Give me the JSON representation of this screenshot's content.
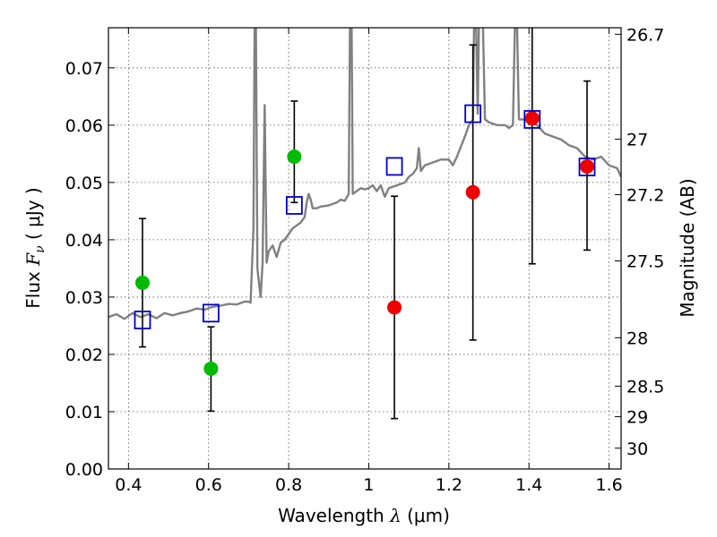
{
  "chart_data": {
    "type": "scatter",
    "xlabel": {
      "pre": "Wavelength  ",
      "sym": "λ",
      "post": " (μm)"
    },
    "ylabel": {
      "pre": "Flux  ",
      "sym": "F",
      "sub": "ν",
      "post": "  ( μJy )"
    },
    "y2label": "Magnitude (AB)",
    "xlim": [
      0.35,
      1.63
    ],
    "ylim": [
      0.0,
      0.077
    ],
    "grid": true,
    "xticks": [
      {
        "v": 0.4,
        "label": "0.4"
      },
      {
        "v": 0.6,
        "label": "0.6"
      },
      {
        "v": 0.8,
        "label": "0.8"
      },
      {
        "v": 1.0,
        "label": "1"
      },
      {
        "v": 1.2,
        "label": "1.2"
      },
      {
        "v": 1.4,
        "label": "1.4"
      },
      {
        "v": 1.6,
        "label": "1.6"
      }
    ],
    "yticks": [
      {
        "v": 0.0,
        "label": "0.00"
      },
      {
        "v": 0.01,
        "label": "0.01"
      },
      {
        "v": 0.02,
        "label": "0.02"
      },
      {
        "v": 0.03,
        "label": "0.03"
      },
      {
        "v": 0.04,
        "label": "0.04"
      },
      {
        "v": 0.05,
        "label": "0.05"
      },
      {
        "v": 0.06,
        "label": "0.06"
      },
      {
        "v": 0.07,
        "label": "0.07"
      }
    ],
    "y2ticks": [
      {
        "mag": 26.7,
        "label": "26.7"
      },
      {
        "mag": 27,
        "label": "27"
      },
      {
        "mag": 27.2,
        "label": "27.2"
      },
      {
        "mag": 27.5,
        "label": "27.5"
      },
      {
        "mag": 28,
        "label": "28"
      },
      {
        "mag": 28.5,
        "label": "28.5"
      },
      {
        "mag": 29,
        "label": "29"
      },
      {
        "mag": 30,
        "label": "30"
      }
    ],
    "colors": {
      "model": "#808080",
      "green": "#00bb00",
      "red": "#ee0000",
      "box": "#0000cc",
      "errorbar": "#000000"
    },
    "model_spectrum": [
      [
        0.35,
        0.0265
      ],
      [
        0.37,
        0.027
      ],
      [
        0.39,
        0.0262
      ],
      [
        0.41,
        0.0272
      ],
      [
        0.43,
        0.0265
      ],
      [
        0.45,
        0.027
      ],
      [
        0.47,
        0.0263
      ],
      [
        0.49,
        0.0272
      ],
      [
        0.51,
        0.0268
      ],
      [
        0.53,
        0.0272
      ],
      [
        0.55,
        0.0275
      ],
      [
        0.57,
        0.028
      ],
      [
        0.59,
        0.0278
      ],
      [
        0.61,
        0.0283
      ],
      [
        0.63,
        0.0285
      ],
      [
        0.65,
        0.0288
      ],
      [
        0.67,
        0.0287
      ],
      [
        0.69,
        0.0292
      ],
      [
        0.7,
        0.0292
      ],
      [
        0.705,
        0.029
      ],
      [
        0.712,
        0.042
      ],
      [
        0.715,
        0.078
      ],
      [
        0.718,
        0.078
      ],
      [
        0.722,
        0.035
      ],
      [
        0.73,
        0.03
      ],
      [
        0.735,
        0.036
      ],
      [
        0.74,
        0.0635
      ],
      [
        0.745,
        0.036
      ],
      [
        0.75,
        0.038
      ],
      [
        0.76,
        0.039
      ],
      [
        0.77,
        0.037
      ],
      [
        0.78,
        0.0395
      ],
      [
        0.79,
        0.04
      ],
      [
        0.8,
        0.041
      ],
      [
        0.81,
        0.042
      ],
      [
        0.82,
        0.0425
      ],
      [
        0.83,
        0.043
      ],
      [
        0.84,
        0.044
      ],
      [
        0.845,
        0.0465
      ],
      [
        0.85,
        0.048
      ],
      [
        0.855,
        0.047
      ],
      [
        0.86,
        0.0455
      ],
      [
        0.87,
        0.0455
      ],
      [
        0.88,
        0.0458
      ],
      [
        0.9,
        0.046
      ],
      [
        0.92,
        0.0465
      ],
      [
        0.93,
        0.047
      ],
      [
        0.94,
        0.0468
      ],
      [
        0.95,
        0.048
      ],
      [
        0.953,
        0.078
      ],
      [
        0.957,
        0.078
      ],
      [
        0.96,
        0.048
      ],
      [
        0.97,
        0.0485
      ],
      [
        0.98,
        0.049
      ],
      [
        0.99,
        0.0488
      ],
      [
        1.0,
        0.049
      ],
      [
        1.01,
        0.0495
      ],
      [
        1.02,
        0.0485
      ],
      [
        1.03,
        0.0495
      ],
      [
        1.04,
        0.0475
      ],
      [
        1.05,
        0.049
      ],
      [
        1.07,
        0.0495
      ],
      [
        1.09,
        0.05
      ],
      [
        1.1,
        0.051
      ],
      [
        1.11,
        0.0515
      ],
      [
        1.12,
        0.0525
      ],
      [
        1.125,
        0.056
      ],
      [
        1.13,
        0.052
      ],
      [
        1.14,
        0.053
      ],
      [
        1.16,
        0.0535
      ],
      [
        1.18,
        0.054
      ],
      [
        1.2,
        0.054
      ],
      [
        1.21,
        0.053
      ],
      [
        1.22,
        0.0545
      ],
      [
        1.24,
        0.058
      ],
      [
        1.25,
        0.06
      ],
      [
        1.26,
        0.061
      ],
      [
        1.263,
        0.078
      ],
      [
        1.268,
        0.078
      ],
      [
        1.272,
        0.062
      ],
      [
        1.275,
        0.078
      ],
      [
        1.285,
        0.078
      ],
      [
        1.29,
        0.061
      ],
      [
        1.3,
        0.0605
      ],
      [
        1.32,
        0.06
      ],
      [
        1.34,
        0.06
      ],
      [
        1.35,
        0.0595
      ],
      [
        1.36,
        0.06
      ],
      [
        1.365,
        0.078
      ],
      [
        1.37,
        0.078
      ],
      [
        1.375,
        0.061
      ],
      [
        1.39,
        0.061
      ],
      [
        1.4,
        0.0605
      ],
      [
        1.42,
        0.06
      ],
      [
        1.44,
        0.0585
      ],
      [
        1.46,
        0.058
      ],
      [
        1.48,
        0.0575
      ],
      [
        1.5,
        0.0565
      ],
      [
        1.52,
        0.056
      ],
      [
        1.54,
        0.0545
      ],
      [
        1.56,
        0.054
      ],
      [
        1.58,
        0.0545
      ],
      [
        1.6,
        0.053
      ],
      [
        1.62,
        0.0525
      ],
      [
        1.63,
        0.051
      ]
    ],
    "series": [
      {
        "marker": "circle",
        "color": "green",
        "points": [
          {
            "x": 0.435,
            "y": 0.0325,
            "err": [
              0.0213,
              0.0437
            ]
          },
          {
            "x": 0.606,
            "y": 0.0175,
            "err": [
              0.0101,
              0.0248
            ]
          },
          {
            "x": 0.814,
            "y": 0.0545,
            "err": [
              0.0465,
              0.0642
            ]
          }
        ]
      },
      {
        "marker": "circle",
        "color": "red",
        "points": [
          {
            "x": 1.064,
            "y": 0.0282,
            "err": [
              0.0088,
              0.0476
            ]
          },
          {
            "x": 1.26,
            "y": 0.0483,
            "err": [
              0.0225,
              0.074
            ]
          },
          {
            "x": 1.408,
            "y": 0.0612,
            "err": [
              0.0358,
              0.0775
            ]
          },
          {
            "x": 1.545,
            "y": 0.0528,
            "err": [
              0.0382,
              0.0677
            ]
          }
        ]
      },
      {
        "marker": "square",
        "color": "box",
        "points": [
          {
            "x": 0.435,
            "y": 0.026
          },
          {
            "x": 0.606,
            "y": 0.0272
          },
          {
            "x": 0.814,
            "y": 0.046
          },
          {
            "x": 1.064,
            "y": 0.0528
          },
          {
            "x": 1.26,
            "y": 0.062
          },
          {
            "x": 1.408,
            "y": 0.061
          },
          {
            "x": 1.545,
            "y": 0.0527
          }
        ]
      }
    ]
  }
}
